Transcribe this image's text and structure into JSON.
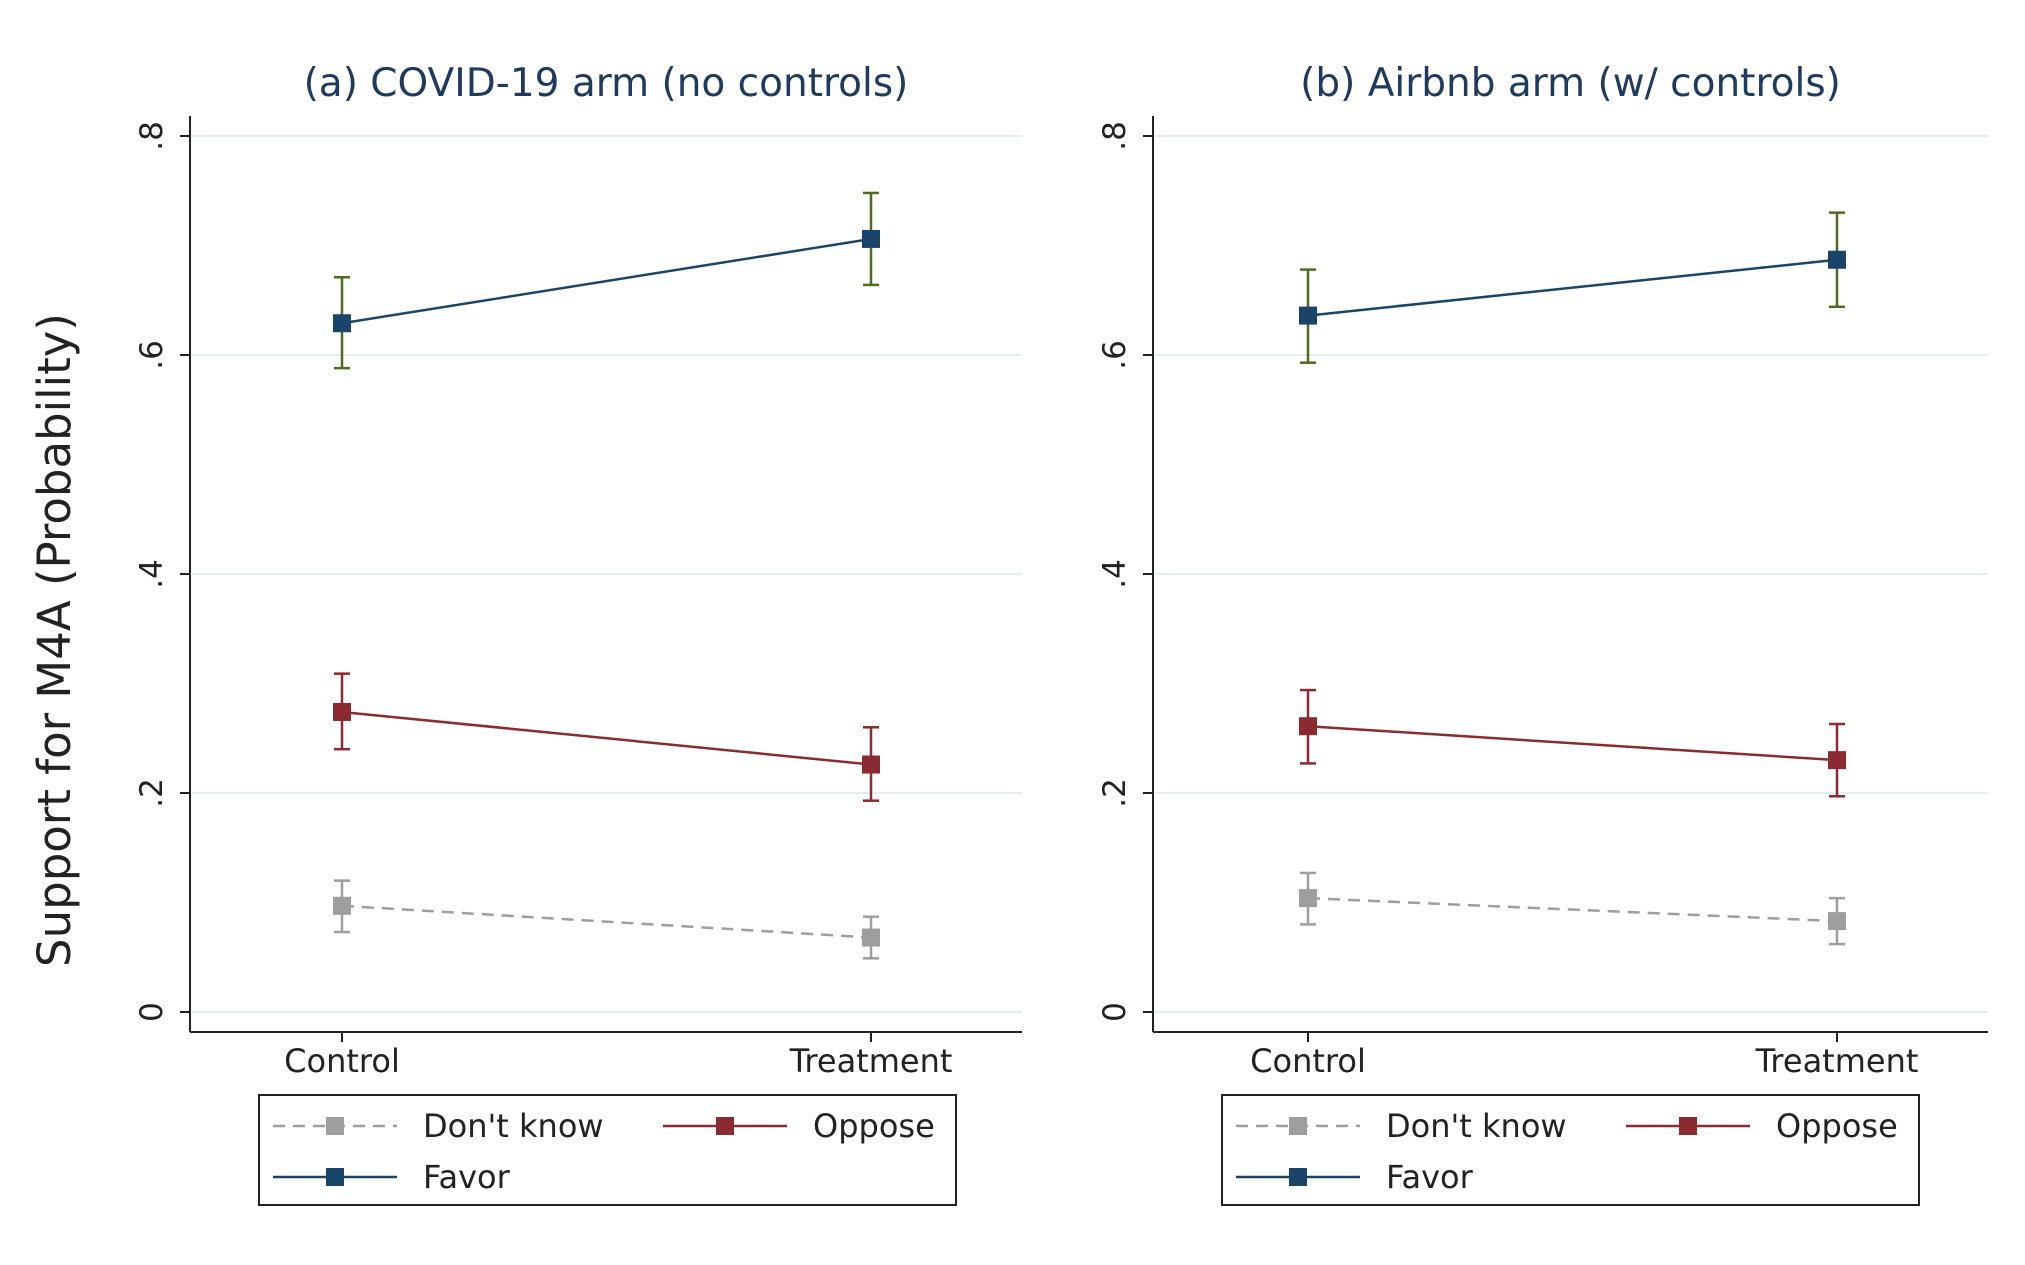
{
  "figure": {
    "ylabel": "Support for M4A (Probability)",
    "colors": {
      "dont_know": "#9e9e9e",
      "oppose": "#8c2a32",
      "favor": "#1b4469",
      "favor_ci": "#4e6b1f",
      "grid": "#e4eef0",
      "axis": "#222222"
    }
  },
  "chart_data": [
    {
      "type": "line",
      "title": "(a) COVID-19 arm (no controls)",
      "categories": [
        "Control",
        "Treatment"
      ],
      "y_ticks": [
        0,
        0.2,
        0.4,
        0.6,
        0.8
      ],
      "y_tick_labels": [
        "0",
        ".2",
        ".4",
        ".6",
        ".8"
      ],
      "ylim": [
        0,
        0.8
      ],
      "grid": true,
      "legend_placement": "bottom",
      "series": [
        {
          "key": "dont_know",
          "name": "Don't know",
          "values": [
            0.097,
            0.068
          ],
          "ci_low": [
            0.073,
            0.049
          ],
          "ci_high": [
            0.12,
            0.087
          ],
          "dashed": true
        },
        {
          "key": "oppose",
          "name": "Oppose",
          "values": [
            0.274,
            0.226
          ],
          "ci_low": [
            0.24,
            0.193
          ],
          "ci_high": [
            0.309,
            0.26
          ],
          "dashed": false
        },
        {
          "key": "favor",
          "name": "Favor",
          "values": [
            0.629,
            0.706
          ],
          "ci_low": [
            0.588,
            0.664
          ],
          "ci_high": [
            0.671,
            0.748
          ],
          "dashed": false
        }
      ]
    },
    {
      "type": "line",
      "title": "(b) Airbnb arm (w/ controls)",
      "categories": [
        "Control",
        "Treatment"
      ],
      "y_ticks": [
        0,
        0.2,
        0.4,
        0.6,
        0.8
      ],
      "y_tick_labels": [
        "0",
        ".2",
        ".4",
        ".6",
        ".8"
      ],
      "ylim": [
        0,
        0.8
      ],
      "grid": true,
      "legend_placement": "bottom",
      "series": [
        {
          "key": "dont_know",
          "name": "Don't know",
          "values": [
            0.104,
            0.083
          ],
          "ci_low": [
            0.08,
            0.062
          ],
          "ci_high": [
            0.127,
            0.104
          ],
          "dashed": true
        },
        {
          "key": "oppose",
          "name": "Oppose",
          "values": [
            0.261,
            0.23
          ],
          "ci_low": [
            0.227,
            0.197
          ],
          "ci_high": [
            0.294,
            0.263
          ],
          "dashed": false
        },
        {
          "key": "favor",
          "name": "Favor",
          "values": [
            0.636,
            0.687
          ],
          "ci_low": [
            0.593,
            0.644
          ],
          "ci_high": [
            0.678,
            0.73
          ],
          "dashed": false
        }
      ]
    }
  ]
}
